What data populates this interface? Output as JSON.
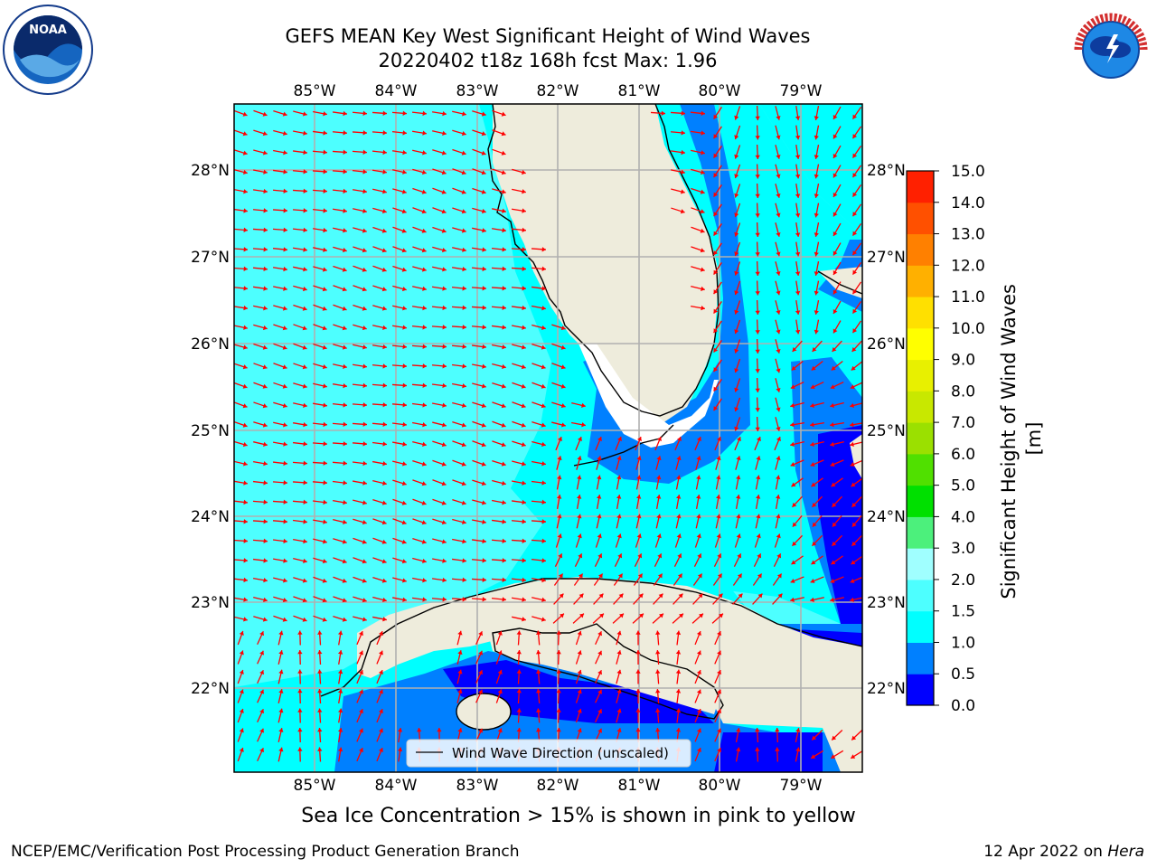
{
  "header": {
    "title_line1": "GEFS MEAN Key West Significant Height of Wind Waves",
    "title_line2": "20220402 t18z 168h fcst   Max: 1.96"
  },
  "logos": {
    "left": "noaa-logo",
    "right": "nws-logo",
    "left_text": "NOAA",
    "right_text": "NATIONAL WEATHER SERVICE"
  },
  "map": {
    "lon_labels": [
      "85°W",
      "84°W",
      "83°W",
      "82°W",
      "81°W",
      "80°W",
      "79°W"
    ],
    "lat_labels": [
      "28°N",
      "27°N",
      "26°N",
      "25°N",
      "24°N",
      "23°N",
      "22°N"
    ],
    "legend_label": "Wind Wave Direction (unscaled)",
    "colors": {
      "land": "#eeecdc",
      "ocean_light": "#4dffff",
      "ocean_mid": "#00ffff",
      "ocean_blue": "#0080ff",
      "ocean_dark": "#0000ff",
      "arrow": "#ff0000",
      "grid": "#b0b0b0"
    }
  },
  "colorbar": {
    "title": "Significant Height of Wind Waves [m]",
    "ticks": [
      "0.0",
      "0.5",
      "1.0",
      "1.5",
      "2.0",
      "3.0",
      "4.0",
      "5.0",
      "6.0",
      "7.0",
      "8.0",
      "9.0",
      "10.0",
      "11.0",
      "12.0",
      "13.0",
      "14.0",
      "15.0"
    ],
    "colors": [
      "#0000ff",
      "#0080ff",
      "#00ffff",
      "#4dffff",
      "#a0ffff",
      "#4cf07c",
      "#00e000",
      "#50e000",
      "#9be000",
      "#c8e800",
      "#e8f000",
      "#ffff00",
      "#ffe000",
      "#ffb000",
      "#ff8000",
      "#ff5000",
      "#ff2000"
    ]
  },
  "notes": {
    "sea_ice": "Sea Ice Concentration > 15% is shown in pink to yellow",
    "producer": "NCEP/EMC/Verification Post Processing Product Generation Branch",
    "date": "12 Apr 2022 on ",
    "machine": "Hera"
  }
}
